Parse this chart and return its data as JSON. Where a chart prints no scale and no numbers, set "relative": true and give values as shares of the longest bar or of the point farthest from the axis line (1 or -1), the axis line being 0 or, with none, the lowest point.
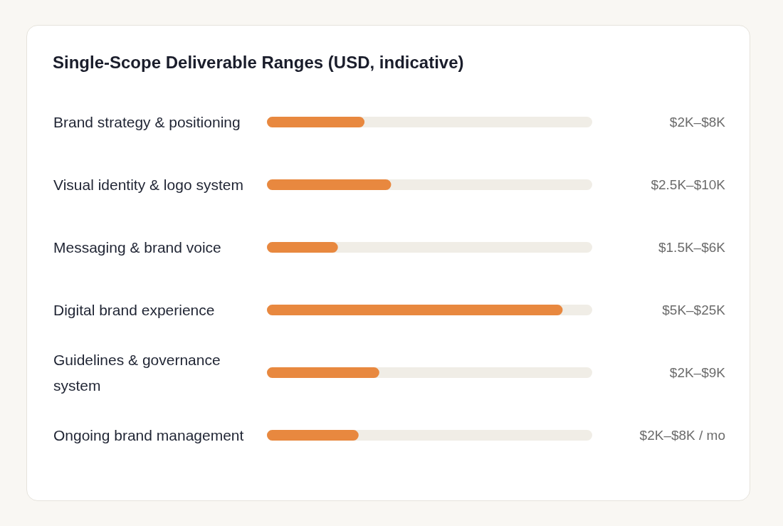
{
  "chart_data": {
    "type": "bar",
    "orientation": "horizontal",
    "relative": true,
    "title": "Single-Scope Deliverable Ranges (USD, indicative)",
    "categories": [
      "Brand strategy & positioning",
      "Visual identity & logo system",
      "Messaging & brand voice",
      "Digital brand experience",
      "Guidelines & governance system",
      "Ongoing brand management"
    ],
    "values": [
      0.33,
      0.42,
      0.24,
      1,
      0.38,
      0.31
    ],
    "annotations": [
      "$2K–$8K",
      "$2.5K–$10K",
      "$1.5K–$6K",
      "$5K–$25K",
      "$2K–$9K",
      "$2K–$8K / mo"
    ],
    "color": "#e8883f",
    "grid": false,
    "legend": false
  }
}
